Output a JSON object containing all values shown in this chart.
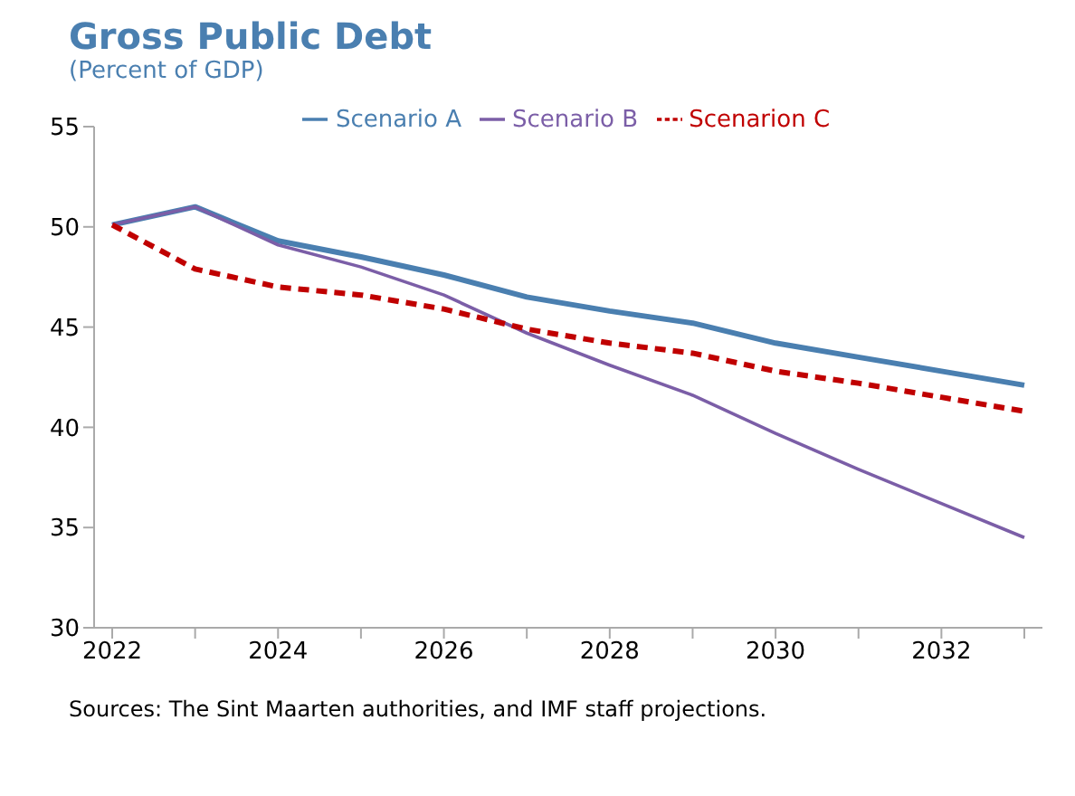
{
  "chart_data": {
    "type": "line",
    "title": "Gross Public Debt",
    "subtitle": "(Percent of GDP)",
    "categories": [
      "2022",
      null,
      "2024",
      null,
      "2026",
      null,
      "2028",
      null,
      "2030",
      null,
      "2032",
      null
    ],
    "series": [
      {
        "name": "Scenario A",
        "color": "#4a7fb0",
        "line_style": "solid",
        "values": [
          50.1,
          51.0,
          49.3,
          48.5,
          47.6,
          46.5,
          45.8,
          45.2,
          44.2,
          43.5,
          42.8,
          42.1
        ]
      },
      {
        "name": "Scenario B",
        "color": "#7b5ea7",
        "line_style": "solid",
        "values": [
          50.1,
          51.0,
          49.1,
          48.0,
          46.6,
          44.7,
          43.1,
          41.6,
          39.7,
          37.9,
          36.2,
          34.5
        ]
      },
      {
        "name": "Scenarion C",
        "color": "#c00000",
        "line_style": "dashed",
        "values": [
          50.1,
          47.9,
          47.0,
          46.6,
          45.9,
          44.9,
          44.2,
          43.7,
          42.8,
          42.2,
          41.5,
          40.8
        ]
      }
    ],
    "ylim": [
      30,
      55
    ],
    "yticks": [
      30,
      35,
      40,
      45,
      50,
      55
    ],
    "grid": false,
    "legend": "top",
    "marker": "none",
    "annotations": [
      "Sources: The Sint Maarten authorities, and IMF staff projections."
    ]
  }
}
